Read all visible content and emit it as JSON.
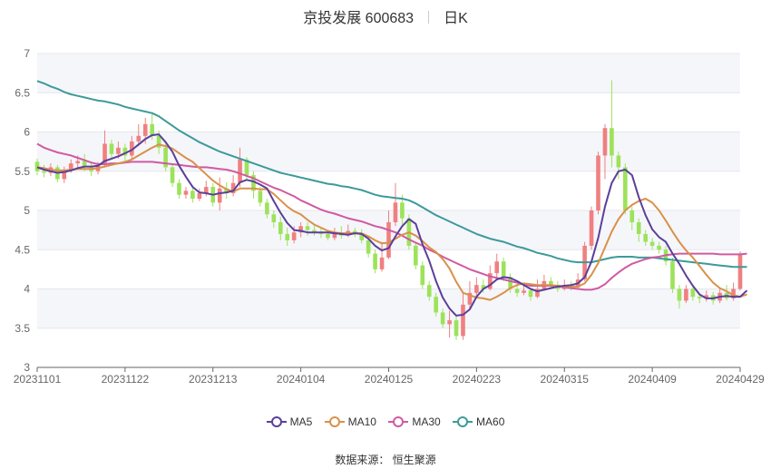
{
  "header": {
    "name": "京投发展 600683",
    "period": "日K"
  },
  "source_label": "数据来源：",
  "source_name": "恒生聚源",
  "colors": {
    "up": "#f08080",
    "down": "#9ce35a",
    "ma5": "#5b3f9a",
    "ma10": "#d9914a",
    "ma30": "#d05aa0",
    "ma60": "#3d9a9a",
    "grid": "#e6e6ee",
    "band": "#f5f6fa"
  },
  "chart_data": {
    "type": "candlestick",
    "ylim": [
      3,
      7
    ],
    "yticks": [
      "3",
      "3.5",
      "4",
      "4.5",
      "5",
      "5.5",
      "6",
      "6.5",
      "7"
    ],
    "xticks": [
      "20231101",
      "20231122",
      "20231213",
      "20240104",
      "20240125",
      "20240223",
      "20240315",
      "20240409",
      "20240429"
    ],
    "legend": [
      "MA5",
      "MA10",
      "MA30",
      "MA60"
    ],
    "ohlc": [
      [
        5.62,
        5.5,
        5.66,
        5.45
      ],
      [
        5.5,
        5.48,
        5.58,
        5.42
      ],
      [
        5.48,
        5.55,
        5.6,
        5.44
      ],
      [
        5.55,
        5.4,
        5.58,
        5.36
      ],
      [
        5.4,
        5.52,
        5.56,
        5.35
      ],
      [
        5.52,
        5.6,
        5.65,
        5.48
      ],
      [
        5.6,
        5.63,
        5.7,
        5.55
      ],
      [
        5.63,
        5.55,
        5.72,
        5.5
      ],
      [
        5.55,
        5.5,
        5.62,
        5.44
      ],
      [
        5.5,
        5.58,
        5.62,
        5.46
      ],
      [
        5.58,
        5.85,
        6.02,
        5.55
      ],
      [
        5.85,
        5.72,
        5.9,
        5.65
      ],
      [
        5.72,
        5.8,
        5.88,
        5.66
      ],
      [
        5.8,
        5.7,
        5.85,
        5.62
      ],
      [
        5.7,
        5.88,
        5.95,
        5.66
      ],
      [
        5.88,
        5.95,
        6.1,
        5.82
      ],
      [
        5.95,
        6.1,
        6.18,
        5.85
      ],
      [
        6.1,
        5.95,
        6.25,
        5.9
      ],
      [
        5.95,
        5.8,
        6.02,
        5.72
      ],
      [
        5.8,
        5.55,
        5.85,
        5.5
      ],
      [
        5.55,
        5.35,
        5.58,
        5.3
      ],
      [
        5.35,
        5.2,
        5.4,
        5.15
      ],
      [
        5.2,
        5.25,
        5.3,
        5.15
      ],
      [
        5.25,
        5.15,
        5.3,
        5.1
      ],
      [
        5.15,
        5.22,
        5.28,
        5.12
      ],
      [
        5.22,
        5.3,
        5.38,
        5.18
      ],
      [
        5.3,
        5.1,
        5.35,
        5.05
      ],
      [
        5.1,
        5.28,
        5.42,
        5.0
      ],
      [
        5.28,
        5.22,
        5.36,
        5.15
      ],
      [
        5.22,
        5.35,
        5.45,
        5.18
      ],
      [
        5.35,
        5.65,
        5.8,
        5.3
      ],
      [
        5.65,
        5.45,
        5.68,
        5.38
      ],
      [
        5.45,
        5.25,
        5.5,
        5.15
      ],
      [
        5.25,
        5.1,
        5.3,
        5.05
      ],
      [
        5.1,
        4.95,
        5.15,
        4.9
      ],
      [
        4.95,
        4.85,
        5.0,
        4.78
      ],
      [
        4.85,
        4.7,
        4.92,
        4.62
      ],
      [
        4.7,
        4.62,
        4.78,
        4.55
      ],
      [
        4.62,
        4.72,
        4.8,
        4.58
      ],
      [
        4.72,
        4.8,
        4.85,
        4.66
      ],
      [
        4.8,
        4.75,
        4.85,
        4.68
      ],
      [
        4.75,
        4.72,
        4.82,
        4.68
      ],
      [
        4.72,
        4.7,
        4.78,
        4.65
      ],
      [
        4.7,
        4.65,
        4.75,
        4.62
      ],
      [
        4.65,
        4.72,
        4.78,
        4.62
      ],
      [
        4.72,
        4.68,
        4.8,
        4.64
      ],
      [
        4.68,
        4.74,
        4.82,
        4.66
      ],
      [
        4.74,
        4.7,
        4.78,
        4.66
      ],
      [
        4.7,
        4.62,
        4.76,
        4.58
      ],
      [
        4.62,
        4.45,
        4.66,
        4.4
      ],
      [
        4.45,
        4.25,
        4.5,
        4.2
      ],
      [
        4.25,
        4.4,
        4.6,
        4.22
      ],
      [
        4.4,
        4.85,
        5.0,
        4.38
      ],
      [
        4.85,
        5.1,
        5.35,
        4.8
      ],
      [
        5.1,
        4.9,
        5.2,
        4.82
      ],
      [
        4.9,
        4.55,
        4.95,
        4.5
      ],
      [
        4.55,
        4.3,
        4.6,
        4.25
      ],
      [
        4.3,
        4.05,
        4.35,
        4.0
      ],
      [
        4.05,
        3.9,
        4.1,
        3.85
      ],
      [
        3.9,
        3.7,
        3.95,
        3.65
      ],
      [
        3.7,
        3.55,
        3.75,
        3.5
      ],
      [
        3.55,
        3.6,
        3.72,
        3.38
      ],
      [
        3.6,
        3.4,
        3.65,
        3.35
      ],
      [
        3.4,
        3.8,
        3.95,
        3.35
      ],
      [
        3.8,
        3.95,
        4.1,
        3.75
      ],
      [
        3.95,
        4.05,
        4.15,
        3.9
      ],
      [
        4.05,
        4.0,
        4.12,
        3.95
      ],
      [
        4.0,
        4.2,
        4.3,
        3.98
      ],
      [
        4.2,
        4.35,
        4.45,
        4.15
      ],
      [
        4.35,
        4.15,
        4.4,
        4.1
      ],
      [
        4.15,
        4.0,
        4.2,
        3.95
      ],
      [
        4.0,
        3.95,
        4.05,
        3.9
      ],
      [
        3.95,
        3.98,
        4.05,
        3.92
      ],
      [
        3.98,
        3.9,
        4.02,
        3.85
      ],
      [
        3.9,
        4.0,
        4.12,
        3.88
      ],
      [
        4.0,
        4.1,
        4.18,
        3.98
      ],
      [
        4.1,
        4.05,
        4.15,
        4.0
      ],
      [
        4.05,
        4.0,
        4.1,
        3.96
      ],
      [
        4.0,
        4.05,
        4.12,
        3.98
      ],
      [
        4.05,
        4.02,
        4.1,
        3.98
      ],
      [
        4.02,
        4.12,
        4.2,
        4.0
      ],
      [
        4.12,
        4.55,
        4.6,
        4.1
      ],
      [
        4.55,
        5.0,
        5.05,
        4.5
      ],
      [
        5.0,
        5.7,
        5.75,
        4.95
      ],
      [
        5.7,
        6.05,
        6.1,
        5.4
      ],
      [
        6.05,
        5.7,
        6.66,
        5.55
      ],
      [
        5.7,
        5.55,
        5.75,
        5.4
      ],
      [
        5.55,
        5.0,
        5.6,
        4.95
      ],
      [
        5.0,
        4.85,
        5.05,
        4.75
      ],
      [
        4.85,
        4.7,
        4.9,
        4.6
      ],
      [
        4.7,
        4.6,
        4.75,
        4.55
      ],
      [
        4.6,
        4.55,
        4.65,
        4.5
      ],
      [
        4.55,
        4.5,
        4.6,
        4.45
      ],
      [
        4.5,
        4.35,
        4.55,
        4.3
      ],
      [
        4.35,
        4.0,
        4.4,
        3.95
      ],
      [
        4.0,
        3.85,
        4.05,
        3.75
      ],
      [
        3.85,
        4.0,
        4.05,
        3.82
      ],
      [
        4.0,
        3.9,
        4.05,
        3.85
      ],
      [
        3.9,
        3.88,
        3.95,
        3.82
      ],
      [
        3.88,
        3.92,
        3.98,
        3.84
      ],
      [
        3.92,
        3.85,
        3.96,
        3.8
      ],
      [
        3.85,
        3.95,
        4.0,
        3.82
      ],
      [
        3.95,
        3.88,
        4.05,
        3.85
      ],
      [
        3.88,
        4.0,
        4.08,
        3.85
      ],
      [
        4.0,
        4.45,
        4.48,
        3.98
      ]
    ],
    "ma": {
      "MA5": [
        5.55,
        5.52,
        5.5,
        5.48,
        5.49,
        5.51,
        5.54,
        5.56,
        5.56,
        5.57,
        5.63,
        5.66,
        5.69,
        5.73,
        5.77,
        5.84,
        5.91,
        5.96,
        5.97,
        5.87,
        5.75,
        5.57,
        5.43,
        5.3,
        5.23,
        5.22,
        5.2,
        5.22,
        5.23,
        5.25,
        5.36,
        5.39,
        5.37,
        5.33,
        5.28,
        5.12,
        4.97,
        4.84,
        4.75,
        4.74,
        4.72,
        4.72,
        4.72,
        4.72,
        4.71,
        4.7,
        4.69,
        4.71,
        4.7,
        4.64,
        4.55,
        4.49,
        4.52,
        4.67,
        4.8,
        4.89,
        4.83,
        4.57,
        4.36,
        4.1,
        3.89,
        3.75,
        3.66,
        3.67,
        3.74,
        3.9,
        4.0,
        4.05,
        4.12,
        4.15,
        4.14,
        4.1,
        4.05,
        4.0,
        3.97,
        3.99,
        4.01,
        4.03,
        4.04,
        4.05,
        4.07,
        4.15,
        4.35,
        4.65,
        5.05,
        5.35,
        5.5,
        5.52,
        5.45,
        5.17,
        4.94,
        4.76,
        4.66,
        4.6,
        4.45,
        4.32,
        4.17,
        4.04,
        3.93,
        3.88,
        3.88,
        3.9,
        3.91,
        3.9,
        3.9,
        3.98
      ],
      "MA10": [
        5.55,
        5.54,
        5.52,
        5.51,
        5.51,
        5.52,
        5.53,
        5.53,
        5.53,
        5.54,
        5.56,
        5.58,
        5.6,
        5.62,
        5.65,
        5.7,
        5.75,
        5.8,
        5.84,
        5.82,
        5.79,
        5.73,
        5.67,
        5.62,
        5.54,
        5.46,
        5.38,
        5.32,
        5.27,
        5.24,
        5.28,
        5.28,
        5.28,
        5.27,
        5.27,
        5.21,
        5.13,
        5.05,
        4.99,
        4.95,
        4.88,
        4.82,
        4.78,
        4.74,
        4.72,
        4.71,
        4.71,
        4.71,
        4.71,
        4.67,
        4.62,
        4.58,
        4.59,
        4.64,
        4.69,
        4.72,
        4.68,
        4.61,
        4.53,
        4.47,
        4.38,
        4.26,
        4.09,
        3.95,
        3.92,
        3.89,
        3.88,
        3.86,
        3.9,
        3.95,
        4.01,
        4.05,
        4.07,
        4.06,
        4.05,
        4.05,
        4.05,
        4.04,
        4.03,
        4.03,
        4.03,
        4.07,
        4.18,
        4.33,
        4.53,
        4.73,
        4.89,
        5.0,
        5.07,
        5.12,
        5.15,
        5.1,
        5.0,
        4.87,
        4.73,
        4.6,
        4.49,
        4.4,
        4.29,
        4.18,
        4.08,
        4.01,
        3.97,
        3.92,
        3.9,
        3.93
      ],
      "MA30": [
        5.85,
        5.8,
        5.77,
        5.74,
        5.72,
        5.7,
        5.67,
        5.64,
        5.61,
        5.59,
        5.59,
        5.6,
        5.6,
        5.61,
        5.62,
        5.62,
        5.62,
        5.62,
        5.61,
        5.6,
        5.59,
        5.58,
        5.57,
        5.56,
        5.55,
        5.55,
        5.54,
        5.53,
        5.52,
        5.5,
        5.47,
        5.44,
        5.41,
        5.37,
        5.33,
        5.29,
        5.26,
        5.22,
        5.18,
        5.13,
        5.09,
        5.05,
        5.01,
        4.98,
        4.96,
        4.93,
        4.9,
        4.88,
        4.86,
        4.83,
        4.8,
        4.78,
        4.75,
        4.72,
        4.68,
        4.63,
        4.59,
        4.55,
        4.5,
        4.46,
        4.41,
        4.37,
        4.33,
        4.29,
        4.25,
        4.22,
        4.19,
        4.16,
        4.14,
        4.12,
        4.1,
        4.08,
        4.06,
        4.04,
        4.04,
        4.04,
        4.04,
        4.03,
        4.02,
        4.01,
        4.0,
        3.99,
        3.99,
        4.01,
        4.06,
        4.14,
        4.21,
        4.27,
        4.32,
        4.35,
        4.38,
        4.4,
        4.41,
        4.43,
        4.44,
        4.45,
        4.45,
        4.45,
        4.45,
        4.45,
        4.45,
        4.44,
        4.44,
        4.44,
        4.44,
        4.45
      ],
      "MA60": [
        6.65,
        6.62,
        6.58,
        6.55,
        6.51,
        6.48,
        6.46,
        6.44,
        6.42,
        6.4,
        6.39,
        6.37,
        6.35,
        6.32,
        6.3,
        6.28,
        6.26,
        6.24,
        6.2,
        6.14,
        6.08,
        6.02,
        5.97,
        5.92,
        5.87,
        5.83,
        5.79,
        5.75,
        5.72,
        5.69,
        5.66,
        5.63,
        5.6,
        5.57,
        5.54,
        5.51,
        5.48,
        5.46,
        5.44,
        5.42,
        5.4,
        5.38,
        5.36,
        5.34,
        5.33,
        5.31,
        5.3,
        5.28,
        5.26,
        5.23,
        5.2,
        5.18,
        5.17,
        5.16,
        5.15,
        5.13,
        5.09,
        5.04,
        4.99,
        4.94,
        4.9,
        4.86,
        4.82,
        4.78,
        4.74,
        4.7,
        4.67,
        4.64,
        4.62,
        4.6,
        4.57,
        4.54,
        4.52,
        4.49,
        4.46,
        4.44,
        4.42,
        4.39,
        4.37,
        4.35,
        4.34,
        4.34,
        4.34,
        4.36,
        4.38,
        4.4,
        4.41,
        4.41,
        4.41,
        4.4,
        4.4,
        4.4,
        4.39,
        4.38,
        4.37,
        4.36,
        4.35,
        4.34,
        4.33,
        4.32,
        4.31,
        4.3,
        4.29,
        4.28,
        4.28,
        4.28
      ]
    }
  }
}
